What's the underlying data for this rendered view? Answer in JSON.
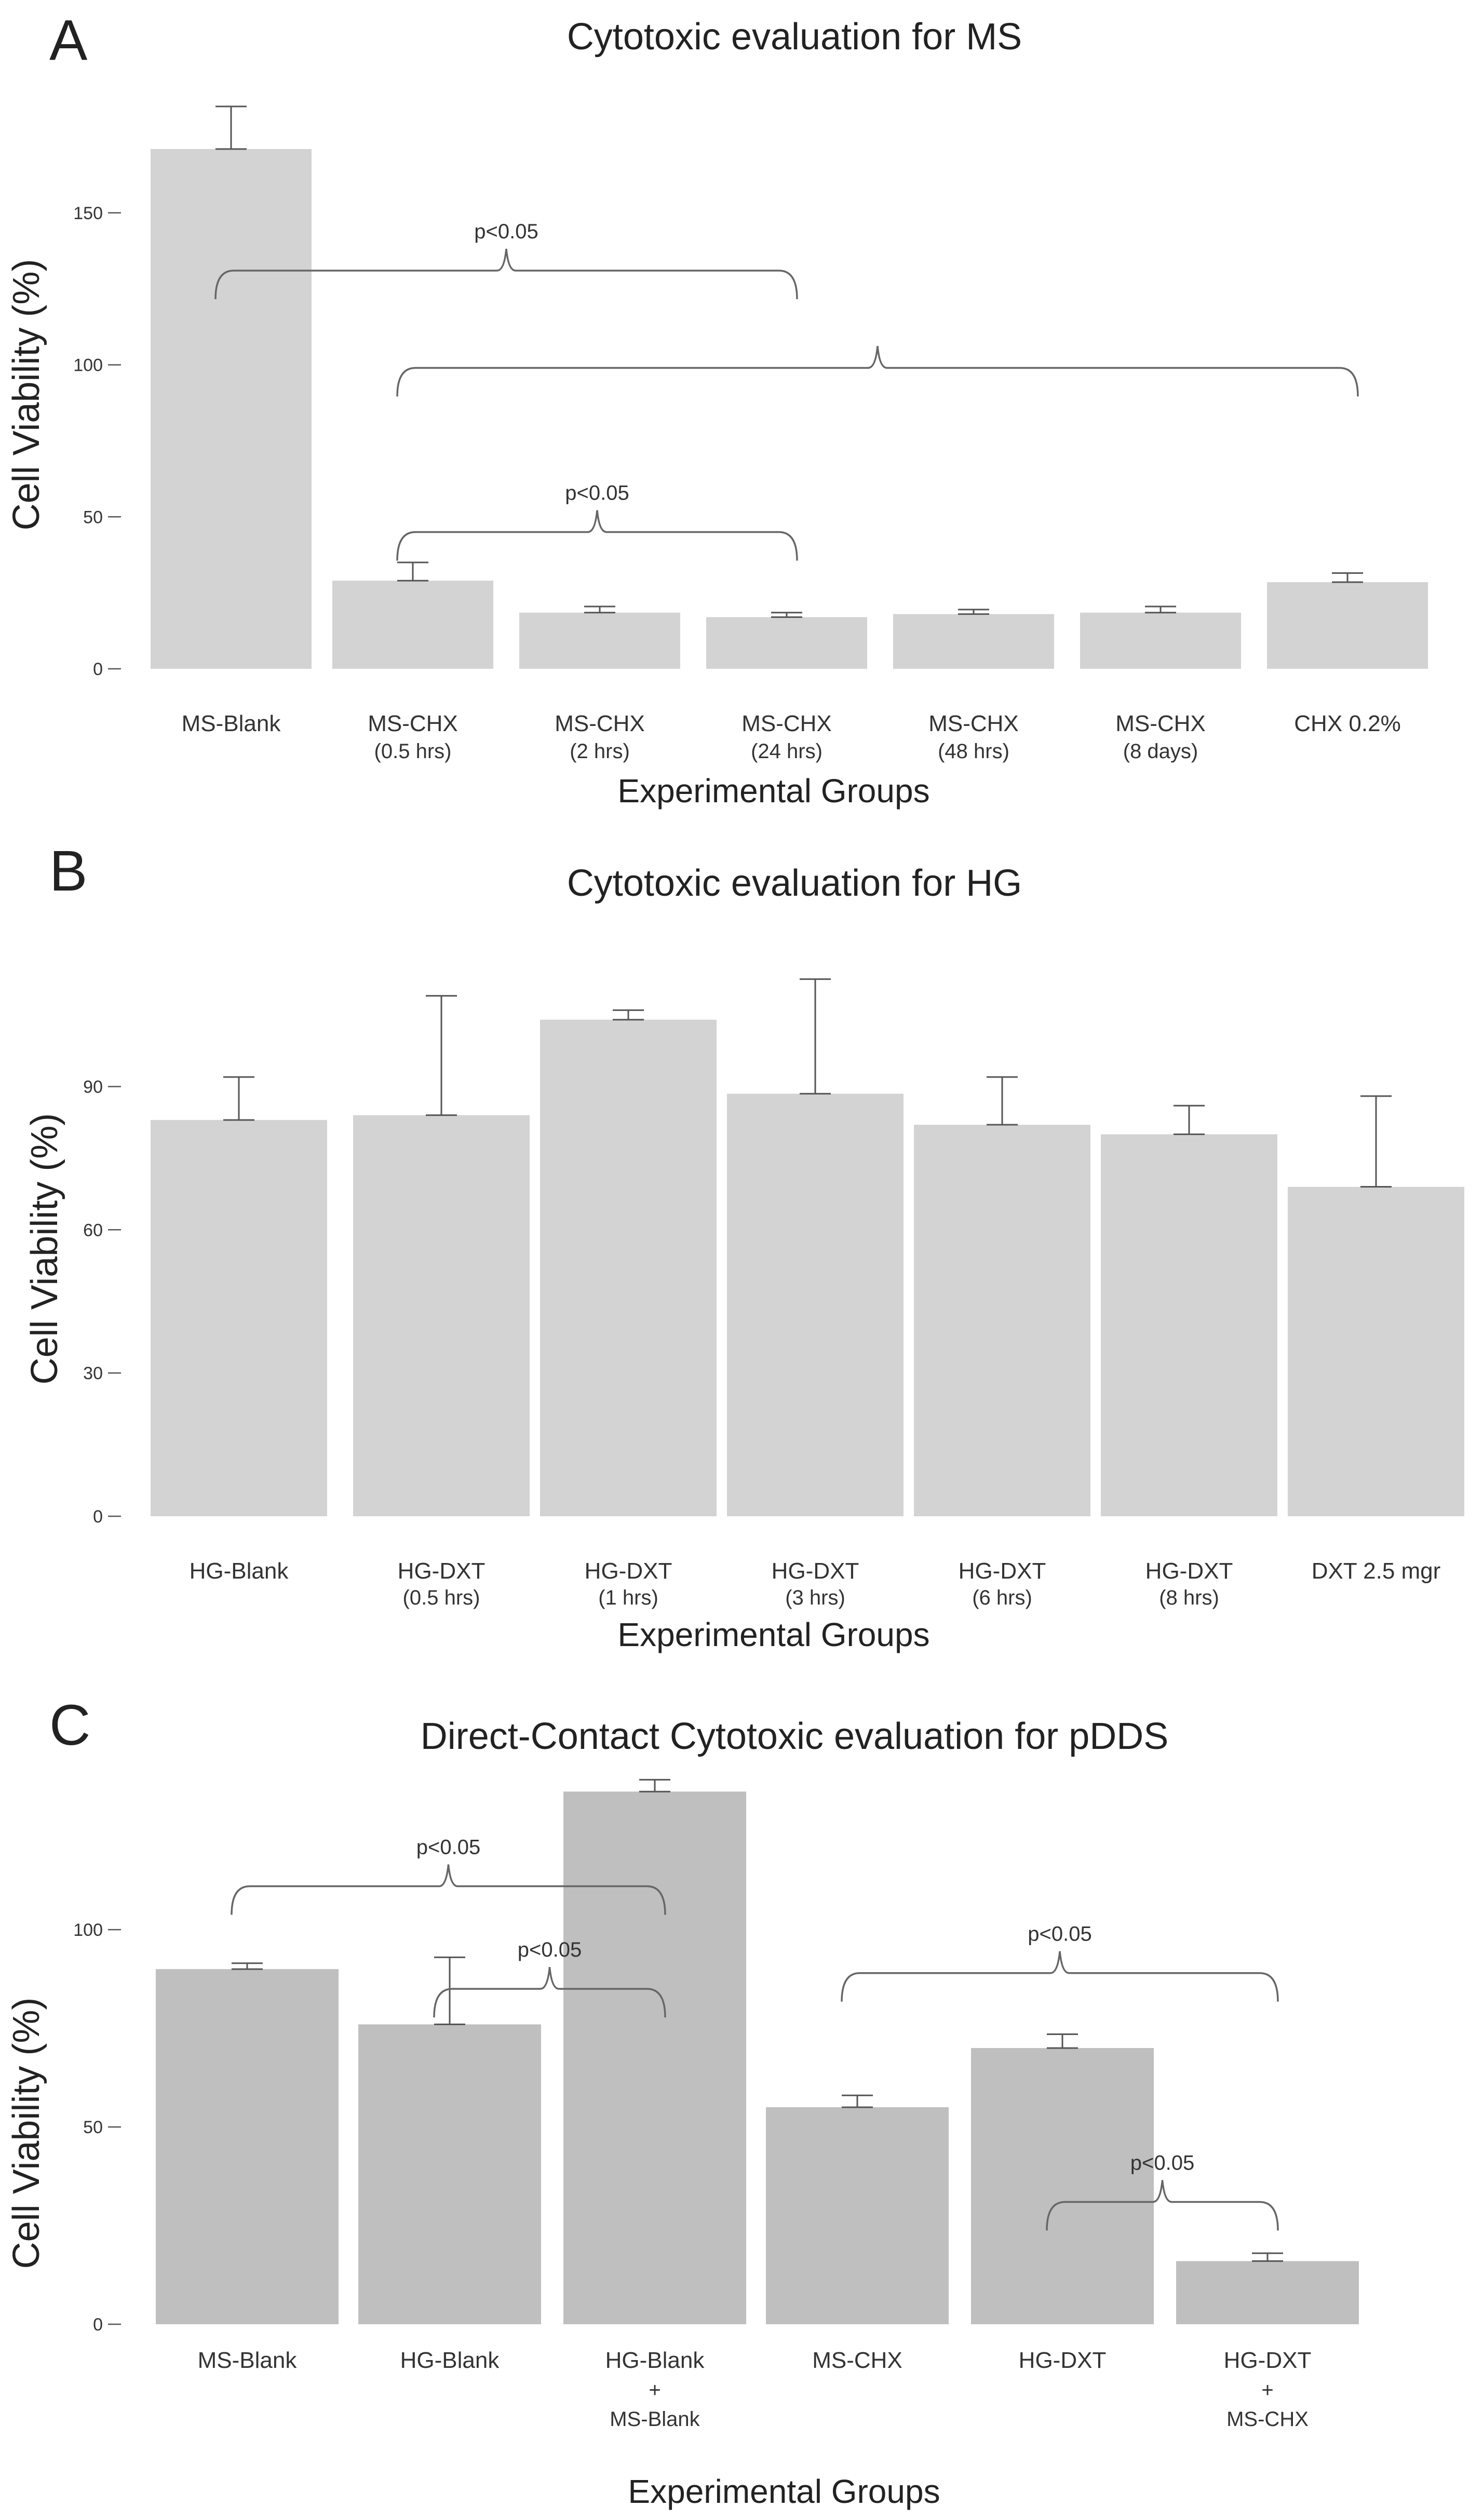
{
  "chart_data": [
    {
      "panel": "A",
      "type": "bar",
      "title": "Cytotoxic evaluation for MS",
      "xlabel": "Experimental Groups",
      "ylabel": "Cell Viability (%)",
      "ylim": [
        0,
        185
      ],
      "yticks": [
        0,
        50,
        100,
        150
      ],
      "bar_color": "#d3d3d3",
      "categories": [
        {
          "label": "MS-Blank",
          "sub": ""
        },
        {
          "label": "MS-CHX",
          "sub": "(0.5 hrs)"
        },
        {
          "label": "MS-CHX",
          "sub": "(2 hrs)"
        },
        {
          "label": "MS-CHX",
          "sub": "(24 hrs)"
        },
        {
          "label": "MS-CHX",
          "sub": "(48 hrs)"
        },
        {
          "label": "MS-CHX",
          "sub": "(8 days)"
        },
        {
          "label": "CHX 0.2%",
          "sub": ""
        }
      ],
      "values": [
        171,
        29,
        18.5,
        17,
        18,
        18.5,
        28.5
      ],
      "errors": [
        14,
        6,
        2,
        1.5,
        1.5,
        2,
        3
      ],
      "significance": [
        {
          "from": 0,
          "to": 3,
          "y": 131,
          "label": "p<0.05"
        },
        {
          "from": 1,
          "to": 6,
          "y": 99,
          "label": ""
        },
        {
          "from": 1,
          "to": 3,
          "y": 45,
          "label": "p<0.05"
        }
      ]
    },
    {
      "panel": "B",
      "type": "bar",
      "title": "Cytotoxic evaluation for HG",
      "xlabel": "Experimental Groups",
      "ylabel": "Cell Viability (%)",
      "ylim": [
        0,
        118
      ],
      "yticks": [
        0,
        30,
        60,
        90
      ],
      "bar_color": "#d3d3d3",
      "categories": [
        {
          "label": "HG-Blank",
          "sub": ""
        },
        {
          "label": "HG-DXT",
          "sub": "(0.5 hrs)"
        },
        {
          "label": "HG-DXT",
          "sub": "(1 hrs)"
        },
        {
          "label": "HG-DXT",
          "sub": "(3 hrs)"
        },
        {
          "label": "HG-DXT",
          "sub": "(6 hrs)"
        },
        {
          "label": "HG-DXT",
          "sub": "(8 hrs)"
        },
        {
          "label": "DXT 2.5 mgr",
          "sub": ""
        }
      ],
      "values": [
        83,
        84,
        104,
        88.5,
        82,
        80,
        69
      ],
      "errors": [
        9,
        25,
        2,
        24,
        10,
        6,
        19
      ],
      "significance": []
    },
    {
      "panel": "C",
      "type": "bar",
      "title": "Direct-Contact Cytotoxic evaluation for pDDS",
      "xlabel": "Experimental Groups",
      "ylabel": "Cell Viability (%)",
      "ylim": [
        0,
        137
      ],
      "yticks": [
        0,
        50,
        100
      ],
      "bar_color": "#bfbfbf",
      "categories": [
        {
          "label": "MS-Blank",
          "sub": ""
        },
        {
          "label": "HG-Blank",
          "sub": ""
        },
        {
          "label": "HG-Blank",
          "sub": "+",
          "sub2": "MS-Blank"
        },
        {
          "label": "MS-CHX",
          "sub": ""
        },
        {
          "label": "HG-DXT",
          "sub": ""
        },
        {
          "label": "HG-DXT",
          "sub": "+",
          "sub2": "MS-CHX"
        }
      ],
      "values": [
        90,
        76,
        135,
        55,
        70,
        16
      ],
      "errors": [
        1.5,
        17,
        3,
        3,
        3.5,
        2
      ],
      "significance": [
        {
          "from": 0,
          "to": 2,
          "y": 111,
          "label": "p<0.05"
        },
        {
          "from": 1,
          "to": 2,
          "y": 85,
          "label": "p<0.05"
        },
        {
          "from": 3,
          "to": 5,
          "y": 89,
          "label": "p<0.05"
        },
        {
          "from": 4,
          "to": 5,
          "y": 31,
          "label": "p<0.05"
        }
      ]
    }
  ]
}
